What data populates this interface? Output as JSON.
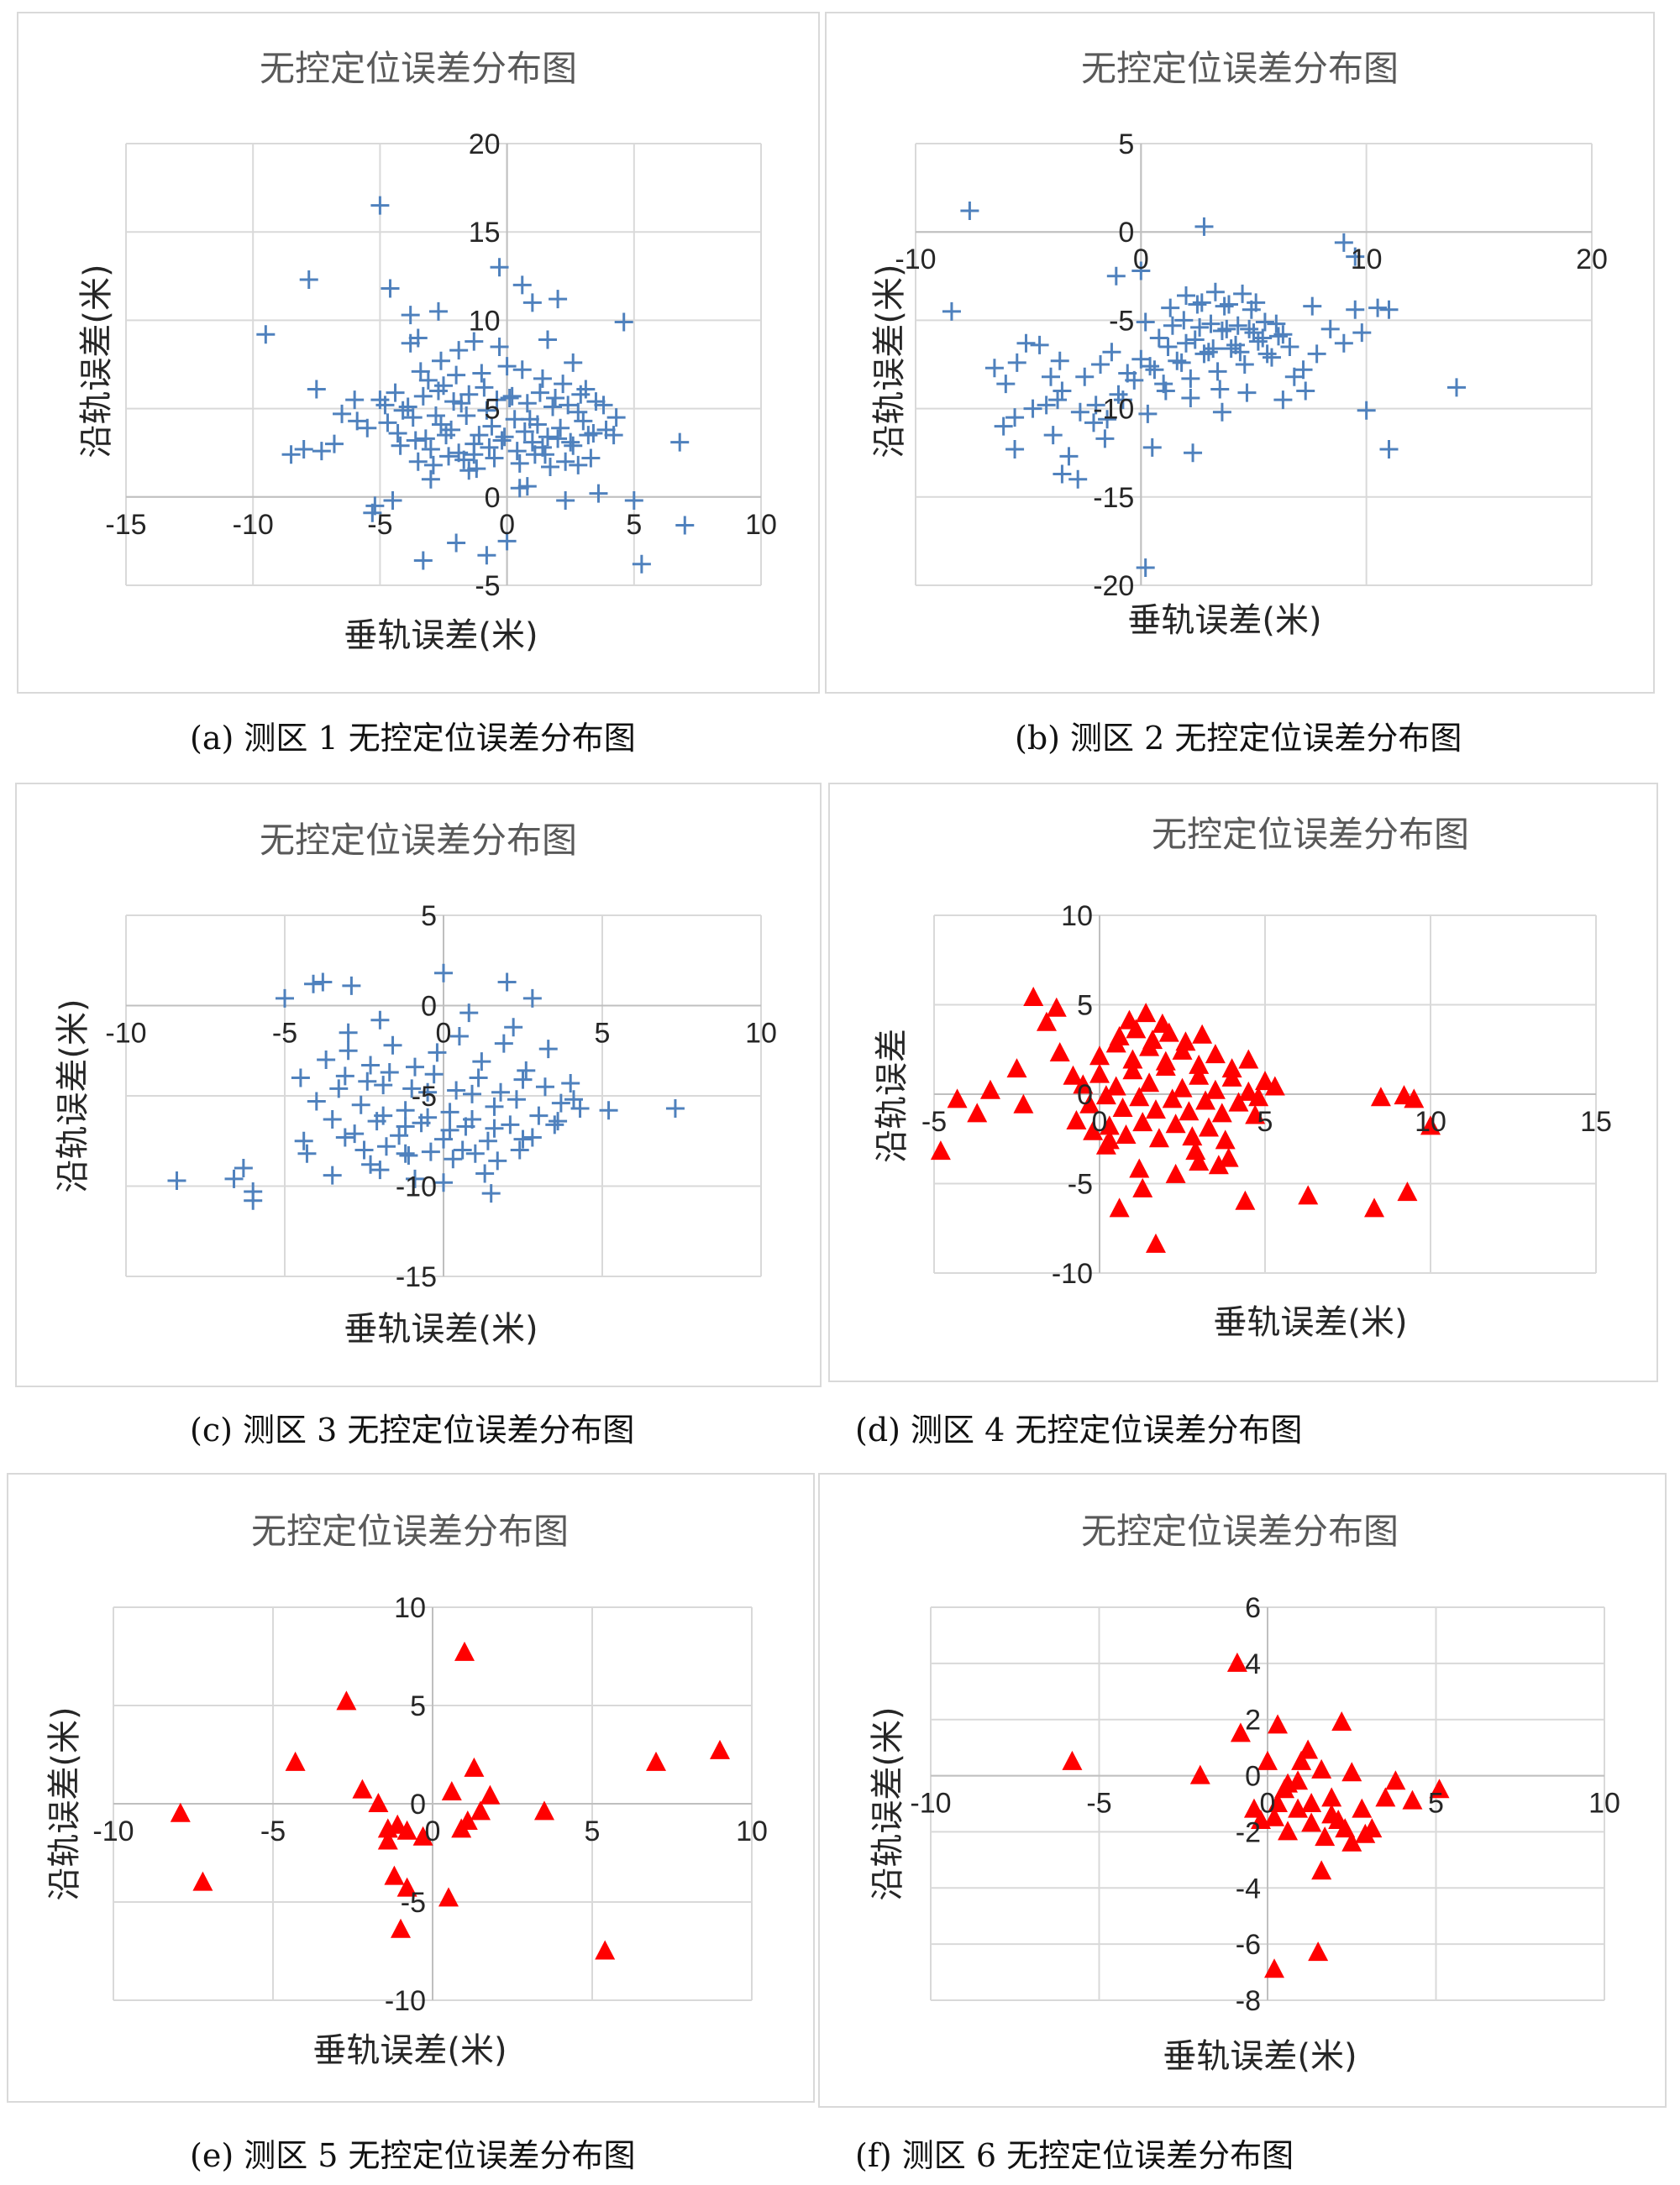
{
  "charts": [
    {
      "caption": "(a)  测区 1 无控定位误差分布图",
      "chart_data": {
        "type": "scatter",
        "title": "无控定位误差分布图",
        "xlabel": "垂轨误差(米)",
        "ylabel": "沿轨误差(米)",
        "xlim": [
          -15,
          10
        ],
        "ylim": [
          -5,
          20
        ],
        "xticks": [
          -15,
          -10,
          -5,
          0,
          5,
          10
        ],
        "yticks": [
          -5,
          0,
          5,
          10,
          15,
          20
        ],
        "marker": "plus",
        "color": "#4f81bd",
        "x": [
          -5,
          -7.8,
          -9.5,
          -2.7,
          -0.3,
          1,
          2,
          0.6,
          -4.6,
          -3.8,
          -3.5,
          4.6,
          -1.3,
          -3.8,
          -7.5,
          -8.5,
          -8,
          -5.2,
          -5.3,
          -4.5,
          -3.3,
          -2,
          5,
          0,
          5.3,
          -0.8,
          7,
          6.8,
          1.4,
          -1.3,
          2.3,
          0.5,
          -3,
          -1.5,
          0.8,
          3.6,
          4.2,
          -6.5,
          -4.8,
          3.3,
          -2.5,
          -3.4,
          -6,
          -2.8,
          -1.8,
          -0.8,
          0.1,
          0.9,
          1.8,
          2.8,
          3.8,
          4.3,
          -5.9,
          -5.5,
          -4.7,
          -4.3,
          -3.7,
          -3.2,
          -2.6,
          -2.2,
          -1.6,
          -1.1,
          -0.6,
          -0.2,
          0.3,
          0.7,
          1.2,
          1.6,
          2.1,
          2.5,
          3,
          3.4,
          3.9,
          -4.2,
          -3.6,
          -3,
          -2.4,
          -1.9,
          -1.3,
          -0.7,
          -0.1,
          0.4,
          1,
          1.5,
          2,
          2.6,
          3.2,
          -5,
          -4.4,
          -3.9,
          -3.3,
          -2.7,
          -2.1,
          -1.5,
          -0.9,
          -0.4,
          0.2,
          0.8,
          1.3,
          1.9,
          2.4,
          2.9,
          3.5,
          -3.5,
          -2.9,
          -2.3,
          -1.7,
          -1.2,
          -0.5,
          0.5,
          1.1,
          1.7,
          2.3,
          2.8,
          -4.1,
          -3.1,
          -2,
          -1,
          0,
          1.4,
          2.2,
          3.1,
          -6.8,
          -7.3,
          -1.9,
          -0.3,
          1.6,
          2.6,
          -2.6,
          0.6
        ],
        "y": [
          16.5,
          12.3,
          9.2,
          10.5,
          13,
          11,
          11.2,
          12,
          11.8,
          10.3,
          9,
          9.9,
          8.8,
          8.7,
          6.1,
          2.4,
          2.7,
          -0.5,
          -0.9,
          -0.2,
          -3.6,
          -2.6,
          -0.2,
          -2.5,
          -3.8,
          -3.3,
          -1.6,
          3.1,
          2.8,
          2.4,
          -0.2,
          0.5,
          1,
          1.5,
          0.6,
          0.2,
          3.5,
          4.7,
          5.2,
          2.2,
          6.3,
          7.1,
          5.5,
          4.6,
          5.3,
          4.9,
          5.6,
          4.4,
          5.1,
          4.8,
          5.2,
          4.5,
          4.3,
          3.9,
          4.2,
          3.6,
          4.5,
          3.3,
          4.1,
          3.8,
          4.6,
          3.5,
          4,
          3.2,
          4.4,
          3.7,
          4.1,
          3.4,
          3.9,
          3.1,
          4.3,
          3.6,
          3.8,
          2.9,
          3.2,
          2.7,
          3.5,
          2.5,
          3,
          2.8,
          3.4,
          2.6,
          3.1,
          2.4,
          3.3,
          2.9,
          3.5,
          5.5,
          5.9,
          5.1,
          5.7,
          6,
          5.4,
          5.8,
          6.2,
          5.5,
          5.7,
          5.3,
          5.9,
          5.6,
          5.2,
          5.8,
          5.4,
          2,
          1.8,
          2.3,
          2.1,
          1.6,
          2.2,
          1.9,
          2.4,
          1.7,
          2,
          1.8,
          4.9,
          6.6,
          6.9,
          7,
          7.4,
          6.7,
          6.4,
          6.1,
          3,
          2.6,
          8.3,
          8.5,
          8.9,
          7.6,
          7.7,
          7.2
        ]
      }
    },
    {
      "caption": "(b)  测区 2 无控定位误差分布图",
      "chart_data": {
        "type": "scatter",
        "title": "无控定位误差分布图",
        "xlabel": "垂轨误差(米)",
        "ylabel": "沿轨误差(米)",
        "xlim": [
          -10,
          20
        ],
        "ylim": [
          -20,
          5
        ],
        "xticks": [
          -10,
          0,
          10,
          20
        ],
        "yticks": [
          -20,
          -15,
          -10,
          -5,
          0,
          5
        ],
        "marker": "plus",
        "color": "#4f81bd",
        "x": [
          -7.6,
          -8.4,
          2.8,
          9,
          9.5,
          0,
          -1.1,
          14,
          11,
          10,
          -5.6,
          -3.9,
          -3.2,
          -3.5,
          -2.8,
          -6.1,
          -5.6,
          2.3,
          3.6,
          6.3,
          8.4,
          9.5,
          10.5,
          11,
          9.8,
          9,
          7.2,
          7.6,
          -4.5,
          -3.6,
          -5.1,
          -5.5,
          -4,
          -3.5,
          -2.5,
          -1.8,
          -1.3,
          -0.6,
          0,
          0.6,
          1.2,
          1.8,
          2.4,
          3,
          3.6,
          4.2,
          4.8,
          5.4,
          6,
          -1,
          -0.3,
          0.4,
          1,
          1.6,
          2.2,
          2.8,
          3.4,
          4,
          4.6,
          5.2,
          5.8,
          6.3,
          0.2,
          0.8,
          1.4,
          2,
          2.6,
          3.2,
          3.8,
          4.4,
          5,
          5.6,
          6.1,
          6.6,
          1.3,
          1.9,
          2.5,
          3.1,
          3.7,
          4.3,
          4.9,
          5.5,
          2,
          2.7,
          3.3,
          3.9,
          4.5,
          5.1,
          -2,
          -1.5,
          -0.8,
          0.3,
          1.1,
          2.2,
          3.5,
          4.7,
          -4.8,
          -3.7,
          -2.7,
          -2.1,
          -6.5,
          -6,
          -4.2,
          -1.6,
          0.5,
          7.8,
          6.8,
          7.3
        ],
        "y": [
          1.2,
          -4.5,
          0.3,
          -0.6,
          -1.4,
          -2.2,
          -2.5,
          -8.8,
          -12.3,
          -10.1,
          -10.5,
          -11.5,
          -12.7,
          -13.7,
          -14,
          -11,
          -12.3,
          -12.5,
          -10.2,
          -9.5,
          -5.5,
          -4.4,
          -4.3,
          -4.4,
          -5.7,
          -6.3,
          -7.8,
          -4.2,
          -6.4,
          -7.3,
          -6.3,
          -7.4,
          -8.2,
          -9,
          -8.2,
          -7.5,
          -6.8,
          -8,
          -7.2,
          -7.8,
          -6.5,
          -7.4,
          -6.1,
          -6.8,
          -5.6,
          -6.4,
          -5.5,
          -6,
          -5.2,
          -9.2,
          -8.4,
          -7.6,
          -8.6,
          -7.3,
          -8.3,
          -6.9,
          -7.9,
          -6.6,
          -7.5,
          -6.2,
          -7.1,
          -5.8,
          -5.1,
          -6,
          -5.3,
          -6.3,
          -5.4,
          -6.6,
          -5.5,
          -6.8,
          -5.7,
          -6.9,
          -5.9,
          -6.5,
          -4.3,
          -5,
          -4.1,
          -5.2,
          -4.2,
          -5.3,
          -4.4,
          -5.1,
          -3.6,
          -4,
          -3.4,
          -4.1,
          -3.5,
          -4,
          -9.8,
          -10.6,
          -9.5,
          -10.3,
          -9,
          -9.4,
          -8.9,
          -9.1,
          -10,
          -9.5,
          -10.2,
          -10.8,
          -7.7,
          -8.6,
          -9.8,
          -11.7,
          -12.2,
          -6.9,
          -8.2,
          -9
        ],
        "outlier_y_low": [
          -19
        ]
      }
    },
    {
      "caption": "(c)  测区 3 无控定位误差分布图",
      "chart_data": {
        "type": "scatter",
        "title": "无控定位误差分布图",
        "xlabel": "垂轨误差(米)",
        "ylabel": "沿轨误差(米)",
        "xlim": [
          -10,
          10
        ],
        "ylim": [
          -15,
          5
        ],
        "xticks": [
          -10,
          -5,
          0,
          5,
          10
        ],
        "yticks": [
          -15,
          -10,
          -5,
          0,
          5
        ],
        "marker": "plus",
        "color": "#4f81bd",
        "x": [
          -8.4,
          -6.6,
          -6.3,
          -6,
          -6,
          -5,
          -4.1,
          -3.8,
          -2.9,
          -2,
          0,
          2,
          2.8,
          4,
          7.3,
          1.5,
          -3.5,
          -2.3,
          -4.4,
          -3.1,
          -1.2,
          0.6,
          2.5,
          3.6,
          4.1,
          -3.7,
          -3,
          -2.3,
          -1.6,
          -0.9,
          -0.2,
          0.5,
          1.2,
          1.9,
          2.6,
          3.3,
          -4,
          -3.3,
          -2.6,
          -1.9,
          -1.2,
          -0.5,
          0.2,
          0.9,
          1.6,
          2.3,
          3,
          3.7,
          4.3,
          -3.5,
          -2.8,
          -2.1,
          -1.4,
          -0.7,
          0,
          0.7,
          1.4,
          2.1,
          2.8,
          3.5,
          -3.1,
          -2.4,
          -1.7,
          -1,
          -0.3,
          0.4,
          1.1,
          1.8,
          2.5,
          3.2,
          -2.5,
          -1.8,
          -1.1,
          -0.4,
          0.3,
          1,
          1.7,
          2.4,
          -1.9,
          -1.2,
          -0.5,
          0.2,
          0.9,
          1.6,
          -4.3,
          -2,
          -0.9,
          0,
          1.3,
          -3,
          0.8,
          2.2,
          -4.5,
          5.2
        ],
        "y": [
          -9.7,
          -9.6,
          -9,
          -10.3,
          -10.8,
          0.4,
          1.2,
          1.3,
          1.1,
          -0.8,
          1.8,
          1.3,
          0.4,
          -4.3,
          -5.7,
          -10.4,
          -9.4,
          -8.8,
          -7.5,
          -7.3,
          -8.2,
          -8,
          -7.4,
          -6.4,
          -5.2,
          -3,
          -2.5,
          -3.3,
          -2.2,
          -3.4,
          -2.6,
          -1.7,
          -3.1,
          -2.1,
          -3.6,
          -2.4,
          -5.3,
          -4.6,
          -5.5,
          -4.4,
          -5.8,
          -4.8,
          -5.9,
          -4.9,
          -5.6,
          -5.2,
          -6.1,
          -5.4,
          -5.7,
          -6.3,
          -7.1,
          -6.4,
          -7.2,
          -6.5,
          -7.4,
          -6.7,
          -7.5,
          -6.6,
          -7.3,
          -6.6,
          -3.9,
          -4.2,
          -3.7,
          -4.6,
          -3.8,
          -4.7,
          -4,
          -4.8,
          -4.1,
          -4.5,
          -8,
          -7.8,
          -8.3,
          -8.1,
          -8.5,
          -8.2,
          -8.6,
          -8,
          -6.1,
          -6.7,
          -6.2,
          -6.9,
          -6.3,
          -6.8,
          -8.2,
          -9.1,
          -9.6,
          -9.8,
          -9.3,
          -1.5,
          -0.4,
          -1.2,
          -4,
          -5.8
        ]
      }
    },
    {
      "caption": "(d)  测区 4 无控定位误差分布图",
      "chart_data": {
        "type": "scatter",
        "title": "无控定位误差分布图",
        "xlabel": "垂轨误差(米)",
        "ylabel": "沿轨误差",
        "xlim": [
          -5,
          15
        ],
        "ylim": [
          -10,
          10
        ],
        "xticks": [
          -5,
          0,
          5,
          10,
          15
        ],
        "yticks": [
          -10,
          -5,
          0,
          5,
          10
        ],
        "marker": "triangle",
        "color": "#ff0000",
        "x": [
          -4.8,
          -4.3,
          -3.7,
          -3.3,
          -2.5,
          -2.3,
          -2,
          -1.6,
          -1.3,
          -1.2,
          -0.8,
          1.3,
          0.6,
          1.7,
          1.2,
          3.6,
          3.9,
          4.4,
          6.3,
          8.3,
          8.5,
          9.2,
          9.3,
          9.5,
          10,
          2.9,
          3,
          2.3,
          0.2,
          -0.5,
          0,
          0.5,
          1,
          1.5,
          2,
          2.5,
          3,
          3.5,
          4,
          4.5,
          5,
          -0.3,
          0.2,
          0.7,
          1.2,
          1.7,
          2.2,
          2.7,
          3.2,
          3.7,
          4.2,
          4.7,
          0,
          0.5,
          1,
          1.5,
          2,
          2.5,
          3,
          3.5,
          4,
          4.5,
          0.3,
          0.8,
          1.3,
          1.8,
          2.3,
          2.8,
          3.3,
          3.8,
          0.6,
          1.1,
          1.6,
          2.1,
          2.6,
          3.1,
          0.9,
          1.4,
          1.9,
          -0.7,
          -0.2,
          0.3,
          4.8,
          5.3
        ],
        "y": [
          -3.2,
          -0.3,
          -1.1,
          0.2,
          1.4,
          -0.6,
          5.4,
          4,
          4.8,
          2.3,
          1,
          -5.3,
          -6.4,
          -8.4,
          -4.2,
          -4,
          -3.6,
          -6,
          -5.7,
          -6.4,
          -0.2,
          -0.1,
          -5.5,
          -0.3,
          -1.8,
          -3.2,
          -3.8,
          -4.5,
          -2.9,
          0.5,
          1.1,
          0.4,
          1.3,
          0.6,
          1.5,
          0.3,
          1,
          0.2,
          0.9,
          0.1,
          0.7,
          -0.6,
          -0.1,
          -0.8,
          -0.2,
          -0.9,
          -0.3,
          -1,
          -0.4,
          -1.1,
          -0.5,
          -1.2,
          2.1,
          2.8,
          1.9,
          2.6,
          1.8,
          2.4,
          1.6,
          2.2,
          1.4,
          1.9,
          -1.8,
          -2.3,
          -1.6,
          -2.5,
          -1.7,
          -2.4,
          -1.9,
          -2.6,
          3.2,
          3.6,
          3,
          3.4,
          2.9,
          3.3,
          4.1,
          4.5,
          3.9,
          -1.5,
          -2.1,
          -2.6,
          -0.2,
          0.4
        ]
      }
    },
    {
      "caption": "(e)  测区 5 无控定位误差分布图",
      "chart_data": {
        "type": "scatter",
        "title": "无控定位误差分布图",
        "xlabel": "垂轨误差(米)",
        "ylabel": "沿轨误差(米)",
        "xlim": [
          -10,
          10
        ],
        "ylim": [
          -10,
          10
        ],
        "xticks": [
          -10,
          -5,
          0,
          5,
          10
        ],
        "yticks": [
          -10,
          -5,
          0,
          5,
          10
        ],
        "marker": "triangle",
        "color": "#ff0000",
        "x": [
          1,
          -2.7,
          -4.3,
          -7.2,
          -7.9,
          -2.2,
          -1.7,
          -1.4,
          -1.1,
          -0.8,
          -0.3,
          0.6,
          1.3,
          1.8,
          1.5,
          1.1,
          0.9,
          3.5,
          7,
          9,
          5.4,
          -1.2,
          -0.8,
          -1,
          0.5,
          -1.4
        ],
        "y": [
          7.7,
          5.2,
          2.1,
          -4,
          -0.5,
          0.7,
          0,
          -1.3,
          -1.1,
          -1.4,
          -1.7,
          0.6,
          1.8,
          0.4,
          -0.4,
          -0.9,
          -1.3,
          -0.4,
          2.1,
          2.7,
          -7.5,
          -3.7,
          -4.3,
          -6.4,
          -4.8,
          -1.9
        ]
      }
    },
    {
      "caption": "(f)  测区 6 无控定位误差分布图",
      "chart_data": {
        "type": "scatter",
        "title": "无控定位误差分布图",
        "xlabel": "垂轨误差(米)",
        "ylabel": "沿轨误差(米)",
        "xlim": [
          -10,
          10
        ],
        "ylim": [
          -8,
          6
        ],
        "xticks": [
          -10,
          -5,
          0,
          5,
          10
        ],
        "yticks": [
          -8,
          -6,
          -4,
          -2,
          0,
          2,
          4,
          6
        ],
        "marker": "triangle",
        "color": "#ff0000",
        "x": [
          -5.8,
          -2,
          -0.9,
          -0.4,
          -0.8,
          0,
          0.3,
          0.6,
          1,
          1.3,
          1.6,
          1.9,
          2.2,
          2.5,
          2.8,
          3.1,
          3.5,
          3.8,
          4.3,
          5.1,
          0.2,
          0.6,
          0.9,
          1.3,
          1.7,
          2.1,
          2.5,
          2.9,
          1.9,
          2.3,
          -0.2,
          0.5,
          1.2,
          0.9,
          0.2,
          1.6,
          1.5,
          0.3
        ],
        "y": [
          0.5,
          0,
          4,
          -1.2,
          1.5,
          0.5,
          1.8,
          -0.3,
          0.5,
          -1,
          0.2,
          -0.8,
          1.9,
          0.1,
          -1.2,
          -1.9,
          -0.8,
          -0.2,
          -0.9,
          -0.5,
          -1.5,
          -2,
          -1.2,
          -1.7,
          -2.2,
          -1.6,
          -2.4,
          -2.1,
          -1.4,
          -1.9,
          -1.6,
          -0.5,
          0.9,
          -0.2,
          -6.9,
          -3.4,
          -6.3,
          -1
        ]
      }
    }
  ]
}
